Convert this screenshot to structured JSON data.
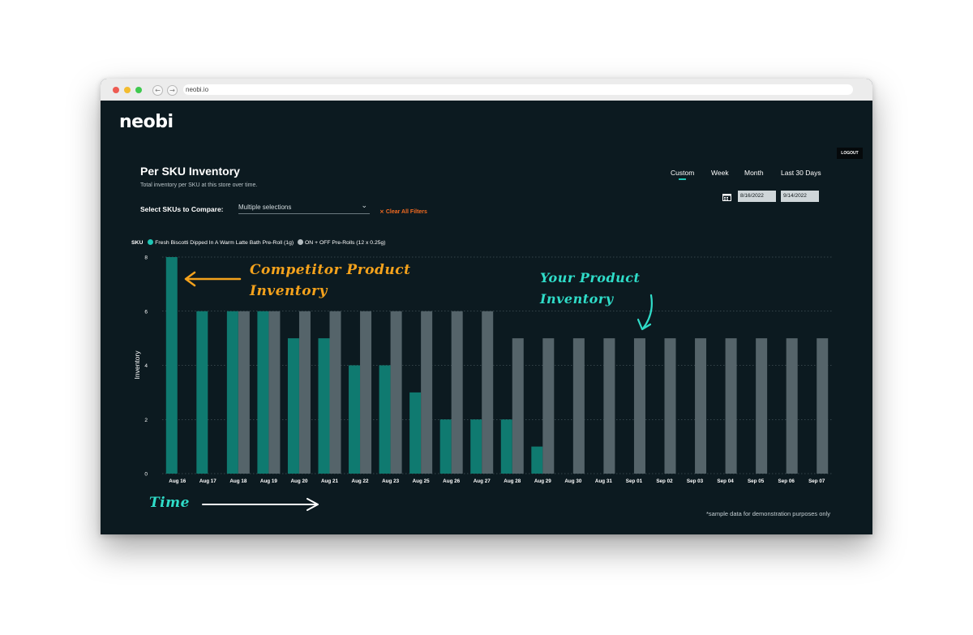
{
  "browser": {
    "url": "neobi.io"
  },
  "app": {
    "logo": "neobi",
    "logout_label": "LOGOUT",
    "title": "Per SKU Inventory",
    "subtitle": "Total inventory per SKU at this store over time.",
    "select_label": "Select SKUs to Compare:",
    "select_value": "Multiple selections",
    "clear_label": "Clear All Filters",
    "clear_icon": "x-icon",
    "ranges": [
      "Custom",
      "Week",
      "Month",
      "Last 30 Days"
    ],
    "active_range": "Custom",
    "date_start": "8/16/2022",
    "date_end": "9/14/2022",
    "footnote": "*sample data for demonstration purposes only"
  },
  "annotations": {
    "competitor_line1": "Competitor Product",
    "competitor_line2": "Inventory",
    "yours_line1": "Your Product",
    "yours_line2": "Inventory",
    "time": "Time"
  },
  "colors": {
    "background": "#0c1a20",
    "series_teal": "#0f7a70",
    "series_gray": "#55646a",
    "accent": "#1fc6b5",
    "annotation_orange": "#f4a21c",
    "annotation_teal": "#2fdcc8",
    "clear_orange": "#f26b21"
  },
  "chart_data": {
    "type": "bar",
    "legend_title": "SKU",
    "ylabel": "Inventory",
    "xlabel": "",
    "ylim": [
      0,
      8
    ],
    "yticks": [
      0,
      2,
      4,
      6,
      8
    ],
    "grid": true,
    "categories": [
      "Aug 16",
      "Aug 17",
      "Aug 18",
      "Aug 19",
      "Aug 20",
      "Aug 21",
      "Aug 22",
      "Aug 23",
      "Aug 25",
      "Aug 26",
      "Aug 27",
      "Aug 28",
      "Aug 29",
      "Aug 30",
      "Aug 31",
      "Sep 01",
      "Sep 02",
      "Sep 03",
      "Sep 04",
      "Sep 05",
      "Sep 06",
      "Sep 07"
    ],
    "series": [
      {
        "name": "Fresh Biscotti Dipped In A Warm Latte Bath Pre-Roll (1g)",
        "color": "#0f7a70",
        "values": [
          8,
          6,
          6,
          6,
          5,
          5,
          4,
          4,
          3,
          2,
          2,
          2,
          1,
          null,
          null,
          null,
          null,
          null,
          null,
          null,
          null,
          null
        ]
      },
      {
        "name": "ON + OFF Pre-Rolls (12 x 0.25g)",
        "color": "#55646a",
        "values": [
          null,
          null,
          6,
          6,
          6,
          6,
          6,
          6,
          6,
          6,
          6,
          5,
          5,
          5,
          5,
          5,
          5,
          5,
          5,
          5,
          5,
          5
        ]
      }
    ]
  }
}
